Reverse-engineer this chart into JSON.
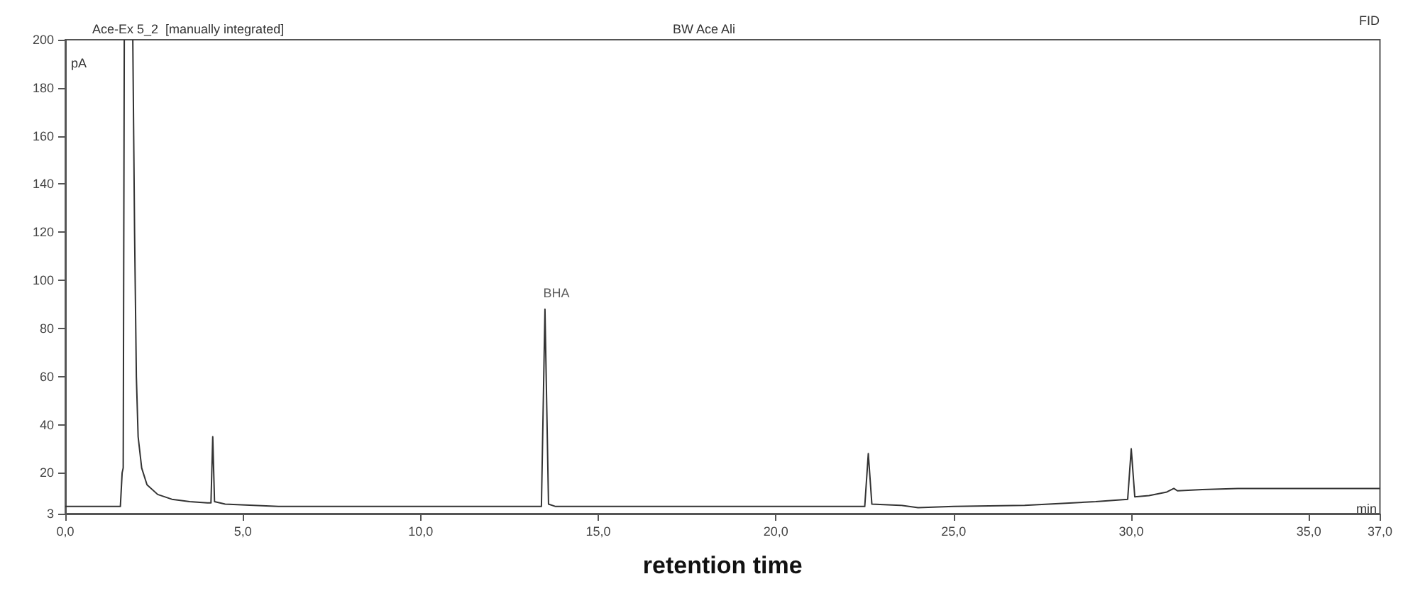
{
  "chart_data": {
    "type": "line",
    "title": "Ace-Ex 5_2  [manually integrated]",
    "subtitle": "BW Ace Ali",
    "xlabel": "retention time",
    "ylabel": "pA",
    "annotations": [
      "FID",
      "min",
      {
        "text": "BHA",
        "x": 13.5,
        "y": 88
      }
    ],
    "series": [
      {
        "color": "#333333",
        "x": [
          0,
          1.55,
          1.6,
          1.63,
          1.66,
          1.88,
          1.9,
          1.95,
          2.0,
          2.05,
          2.15,
          2.3,
          2.6,
          3.0,
          3.5,
          4.0,
          4.1,
          4.15,
          4.2,
          4.5,
          5.3,
          6,
          10,
          13.4,
          13.5,
          13.6,
          13.8,
          16,
          20,
          22.5,
          22.6,
          22.7,
          23.5,
          24,
          25,
          27,
          29,
          29.9,
          30.0,
          30.1,
          30.5,
          31.0,
          31.2,
          31.3,
          32,
          33,
          37
        ],
        "values": [
          6,
          6,
          20,
          22,
          200,
          null,
          200,
          120,
          60,
          35,
          22,
          15,
          11,
          9,
          8,
          7.5,
          7.5,
          35,
          8,
          7,
          6.5,
          6,
          6,
          6,
          88,
          7,
          6,
          6,
          6,
          6,
          28,
          7,
          6.5,
          5.5,
          6,
          6.5,
          8,
          9,
          30,
          10,
          10.5,
          12,
          13.5,
          12.5,
          13,
          13.5,
          13.5
        ]
      }
    ],
    "xlim": [
      0,
      37
    ],
    "xticks": [
      {
        "value": 0,
        "label": "0,0"
      },
      {
        "value": 5,
        "label": "5,0"
      },
      {
        "value": 10,
        "label": "10,0"
      },
      {
        "value": 15,
        "label": "15,0"
      },
      {
        "value": 20,
        "label": "20,0"
      },
      {
        "value": 25,
        "label": "25,0"
      },
      {
        "value": 30,
        "label": "30,0"
      },
      {
        "value": 35,
        "label": "35,0"
      },
      {
        "value": 37,
        "label": "37,0"
      }
    ],
    "ylim": [
      3,
      200
    ],
    "yticks": [
      3,
      20,
      40,
      60,
      80,
      100,
      120,
      140,
      160,
      180,
      200
    ],
    "grid": false,
    "marker": "none",
    "line_style": "solid"
  }
}
